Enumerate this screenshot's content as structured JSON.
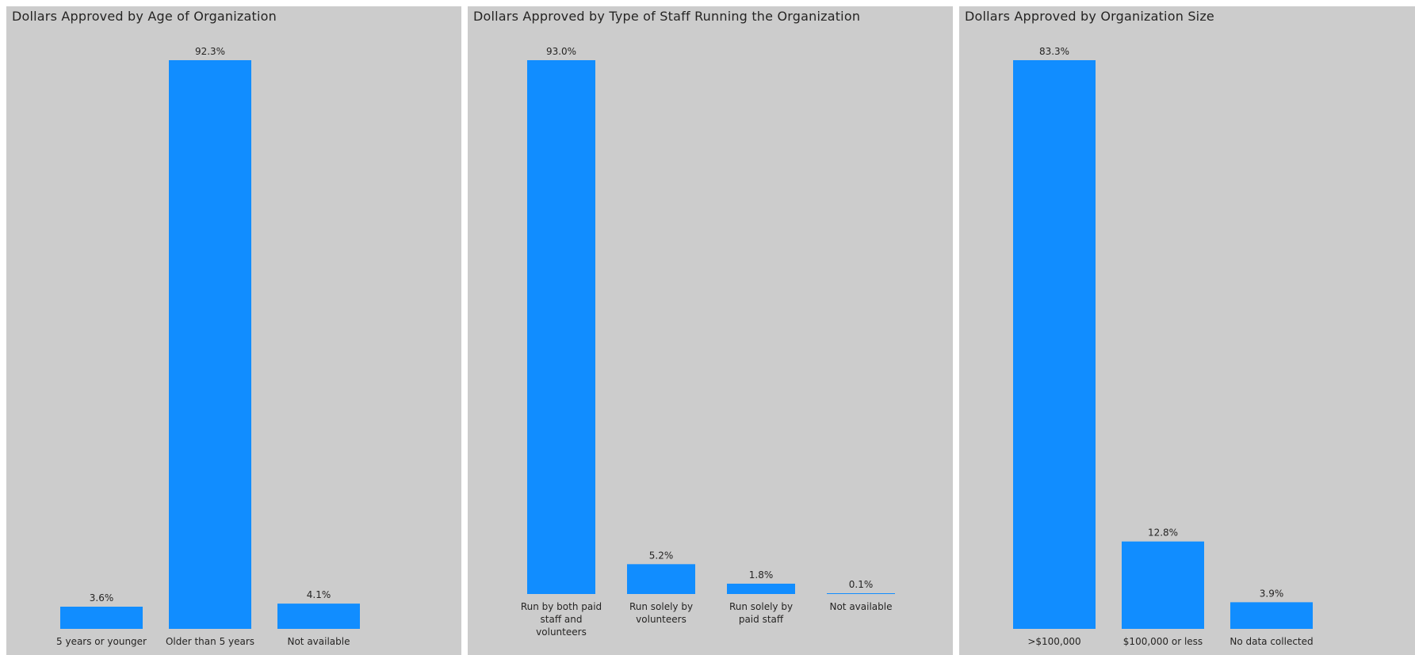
{
  "colors": {
    "bar": "#118dff",
    "panel_bg": "#cccccc",
    "text": "#252423"
  },
  "chart_data": [
    {
      "type": "bar",
      "title": "Dollars Approved by Age of Organization",
      "categories": [
        "5 years or younger",
        "Older than 5 years",
        "Not available"
      ],
      "values": [
        3.6,
        92.3,
        4.1
      ],
      "value_labels": [
        "3.6%",
        "92.3%",
        "4.1%"
      ],
      "unit": "%",
      "ylim": [
        0,
        92.3
      ],
      "grid": false,
      "legend": "none"
    },
    {
      "type": "bar",
      "title": "Dollars Approved by Type of Staff Running the Organization",
      "categories": [
        "Run by both paid staff and volunteers",
        "Run solely by volunteers",
        "Run solely by paid staff",
        "Not available"
      ],
      "values": [
        93.0,
        5.2,
        1.8,
        0.1
      ],
      "value_labels": [
        "93.0%",
        "5.2%",
        "1.8%",
        "0.1%"
      ],
      "unit": "%",
      "ylim": [
        0,
        93.0
      ],
      "grid": false,
      "legend": "none"
    },
    {
      "type": "bar",
      "title": "Dollars Approved by Organization Size",
      "categories": [
        ">$100,000",
        "$100,000 or less",
        "No data collected"
      ],
      "values": [
        83.3,
        12.8,
        3.9
      ],
      "value_labels": [
        "83.3%",
        "12.8%",
        "3.9%"
      ],
      "unit": "%",
      "ylim": [
        0,
        83.3
      ],
      "grid": false,
      "legend": "none"
    }
  ]
}
